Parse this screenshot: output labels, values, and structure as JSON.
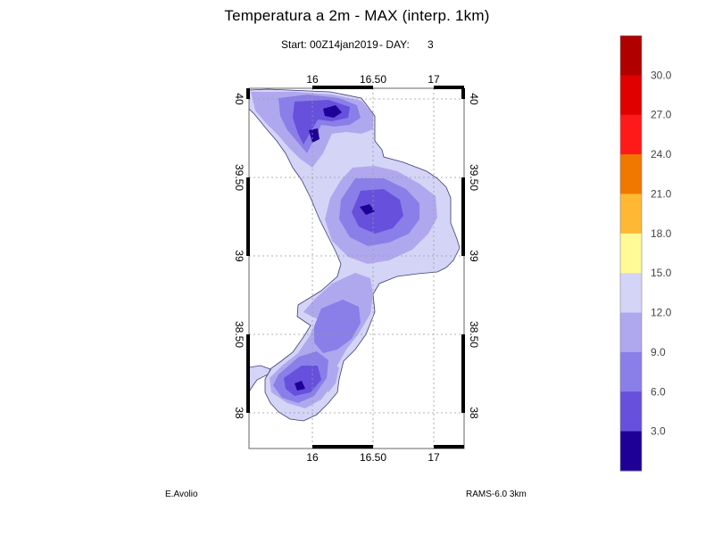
{
  "header": {
    "title": "Temperatura a 2m - MAX (interp. 1km)",
    "start": "Start: 00Z14jan2019",
    "day_label": "- DAY:",
    "day_value": "3"
  },
  "map": {
    "top_ticks": [
      "16",
      "16.50",
      "17"
    ],
    "bottom_ticks": [
      "16",
      "16.50",
      "17"
    ],
    "left_ticks": [
      "40",
      "39.50",
      "39",
      "38.50",
      "38"
    ],
    "right_ticks": [
      "40",
      "39.50",
      "39",
      "38.50",
      "38"
    ]
  },
  "colorbar": {
    "labels": [
      "30.0",
      "27.0",
      "24.0",
      "21.0",
      "18.0",
      "15.0",
      "12.0",
      "9.0",
      "6.0",
      "3.0"
    ],
    "colors": [
      "#b00000",
      "#e00000",
      "#ff1a1a",
      "#f07800",
      "#ffb833",
      "#fffa96",
      "#d4d4f7",
      "#b0a8ef",
      "#8a7ee8",
      "#6650dc",
      "#1e0096"
    ]
  },
  "footer": {
    "author": "E.Avolio",
    "model": "RAMS-6.0 3km"
  }
}
